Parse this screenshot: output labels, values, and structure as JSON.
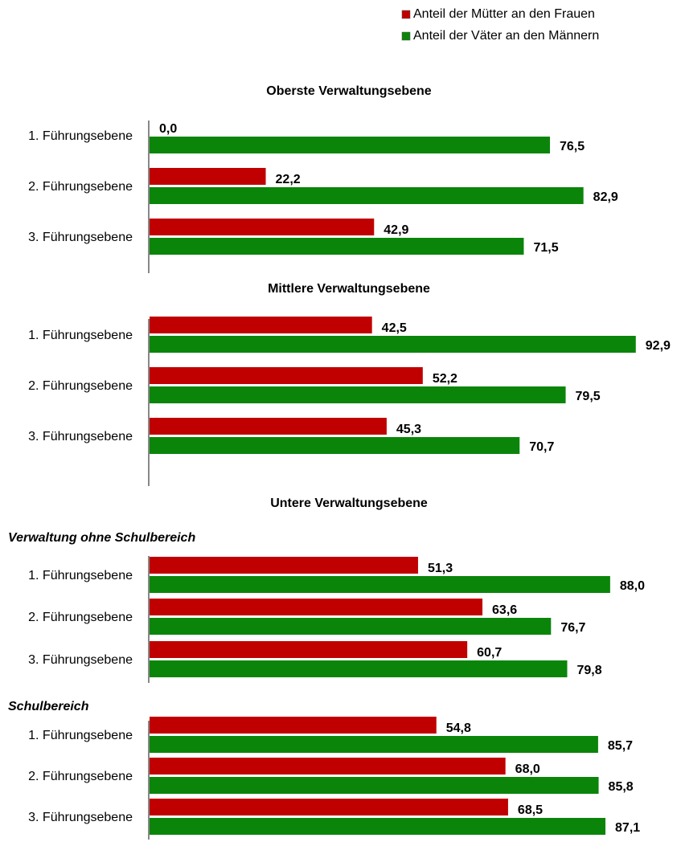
{
  "chart_data": [
    {
      "type": "bar",
      "title": "Oberste Verwaltungsebene",
      "categories": [
        "1. Führungsebene",
        "2. Führungsebene",
        "3. Führungsebene"
      ],
      "series": [
        {
          "name": "Anteil der Mütter an den Frauen",
          "color": "#c00000",
          "values": [
            0,
            22.2,
            42.9
          ],
          "value_labels": [
            "0,0",
            "22,2",
            "42,9"
          ]
        },
        {
          "name": "Anteil der Väter an den Männern",
          "color": "#0a850a",
          "values": [
            76.5,
            82.9,
            71.5
          ],
          "value_labels": [
            "76,5",
            "82,9",
            "71,5"
          ]
        }
      ]
    },
    {
      "type": "bar",
      "title": "Mittlere Verwaltungsebene",
      "categories": [
        "1. Führungsebene",
        "2. Führungsebene",
        "3. Führungsebene"
      ],
      "series": [
        {
          "color": "#c00000",
          "values": [
            42.5,
            52.2,
            45.3
          ],
          "value_labels": [
            "42,5",
            "52,2",
            "45,3"
          ]
        },
        {
          "color": "#0a850a",
          "values": [
            92.9,
            79.5,
            70.7
          ],
          "value_labels": [
            "92,9",
            "79,5",
            "70,7"
          ]
        }
      ]
    },
    {
      "type": "bar",
      "title": "Untere Verwaltungsebene",
      "subtitle": "Verwaltung ohne Schulbereich",
      "categories": [
        "1. Führungsebene",
        "2. Führungsebene",
        "3. Führungsebene"
      ],
      "series": [
        {
          "color": "#c00000",
          "values": [
            51.3,
            63.6,
            60.7
          ],
          "value_labels": [
            "51,3",
            "63,6",
            "60,7"
          ]
        },
        {
          "color": "#0a850a",
          "values": [
            88.0,
            76.7,
            79.8
          ],
          "value_labels": [
            "88,0",
            "76,7",
            "79,8"
          ]
        }
      ]
    },
    {
      "type": "bar",
      "subtitle": "Schulbereich",
      "categories": [
        "1. Führungsebene",
        "2. Führungsebene",
        "3. Führungsebene"
      ],
      "series": [
        {
          "color": "#c00000",
          "values": [
            54.8,
            68.0,
            68.5
          ],
          "value_labels": [
            "54,8",
            "68,0",
            "68,5"
          ]
        },
        {
          "color": "#0a850a",
          "values": [
            85.7,
            85.8,
            87.1
          ],
          "value_labels": [
            "85,7",
            "85,8",
            "87,1"
          ]
        }
      ]
    }
  ]
}
